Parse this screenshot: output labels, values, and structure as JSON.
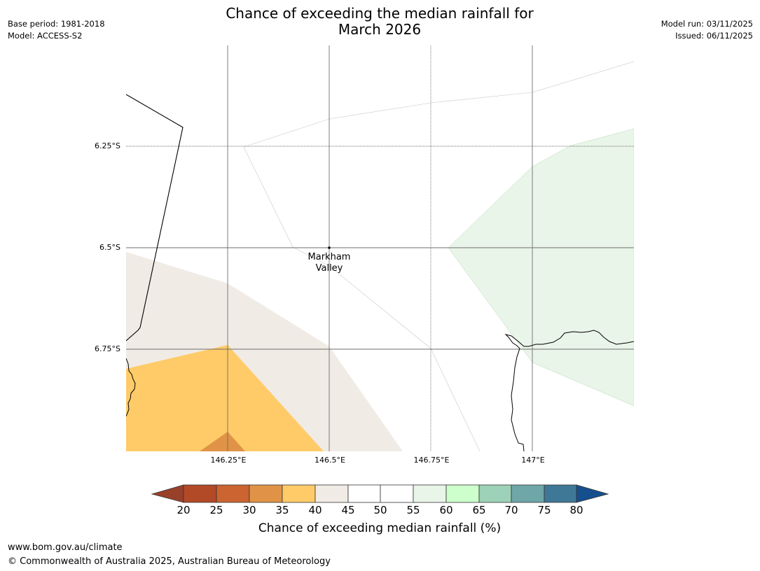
{
  "title": {
    "line1": "Chance of exceeding the median rainfall for",
    "line2": "March 2026"
  },
  "meta_left": {
    "base_period": "Base period: 1981-2018",
    "model": "Model: ACCESS-S2"
  },
  "meta_right": {
    "model_run": "Model run: 03/11/2025",
    "issued": "Issued: 06/11/2025"
  },
  "map": {
    "lat_labels": [
      "6.25°S",
      "6.5°S",
      "6.75°S"
    ],
    "lon_labels": [
      "146.25°E",
      "146.5°E",
      "146.75°E",
      "147°E"
    ],
    "place": {
      "name_line1": "Markham",
      "name_line2": "Valley"
    }
  },
  "colorbar": {
    "ticks": [
      "20",
      "25",
      "30",
      "35",
      "40",
      "45",
      "50",
      "55",
      "60",
      "65",
      "70",
      "75",
      "80"
    ],
    "colors": {
      "below_20": "#99402a",
      "20_25": "#b24a28",
      "25_30": "#cb6430",
      "30_35": "#e09346",
      "35_40": "#fecb68",
      "40_45": "#f0ebe5",
      "45_55": "#ffffff",
      "55_60": "#e9f5e8",
      "60_65": "#ccffcc",
      "65_70": "#9dd1b8",
      "70_75": "#6fa6a8",
      "75_80": "#3f7896",
      "above_80": "#154f8e"
    },
    "label": "Chance of exceeding median rainfall (%)"
  },
  "footer": {
    "url": "www.bom.gov.au/climate",
    "copyright": "© Commonwealth of Australia 2025, Australian Bureau of Meteorology"
  }
}
